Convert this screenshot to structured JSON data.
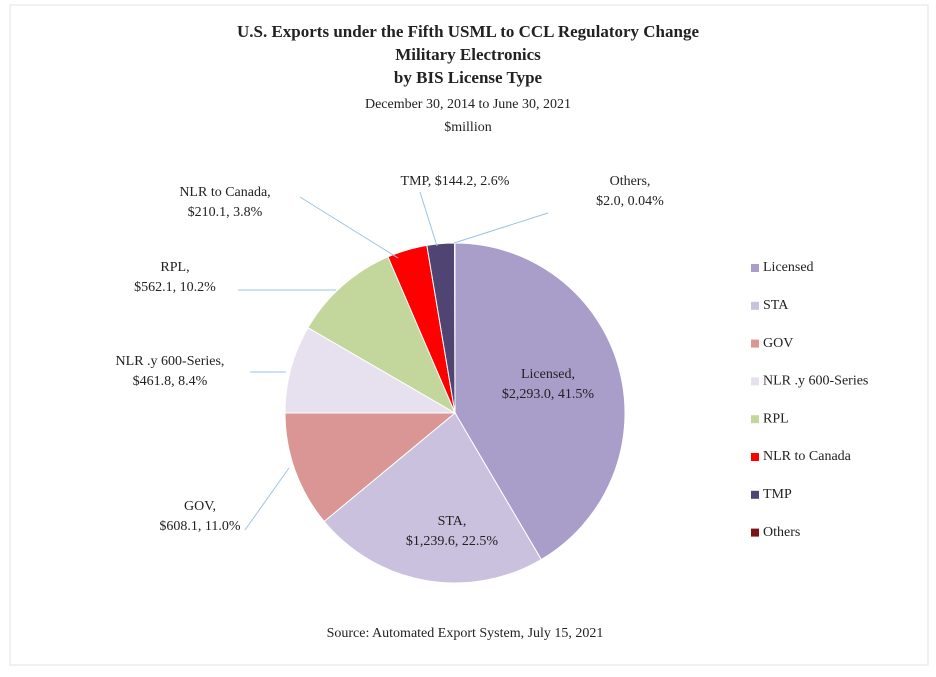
{
  "chart_data": {
    "type": "pie",
    "title": [
      "U.S. Exports under the Fifth USML to CCL Regulatory Change",
      "Military Electronics",
      "by BIS License Type"
    ],
    "subtitle": [
      "December 30, 2014 to June 30, 2021",
      "$million"
    ],
    "source": "Source: Automated Export System, July 15, 2021",
    "categories": [
      "Licensed",
      "STA",
      "GOV",
      "NLR .y 600-Series",
      "RPL",
      "NLR to Canada",
      "TMP",
      "Others"
    ],
    "values": [
      2293.0,
      1239.6,
      608.1,
      461.8,
      562.1,
      210.1,
      144.2,
      2.0
    ],
    "value_labels": [
      [
        "Licensed,",
        "$2,293.0, 41.5%"
      ],
      [
        "STA,",
        "$1,239.6, 22.5%"
      ],
      [
        "GOV,",
        "$608.1, 11.0%"
      ],
      [
        "NLR .y 600-Series,",
        "$461.8, 8.4%"
      ],
      [
        "RPL,",
        "$562.1, 10.2%"
      ],
      [
        "NLR to Canada,",
        "$210.1, 3.8%"
      ],
      [
        "TMP, $144.2, 2.6%"
      ],
      [
        "Others,",
        "$2.0, 0.04%"
      ]
    ],
    "colors": [
      "#a99dc9",
      "#c9c1de",
      "#d99694",
      "#e7e1ef",
      "#c3d69b",
      "#ff0000",
      "#4f4472",
      "#7b1416"
    ],
    "legend": "right"
  }
}
